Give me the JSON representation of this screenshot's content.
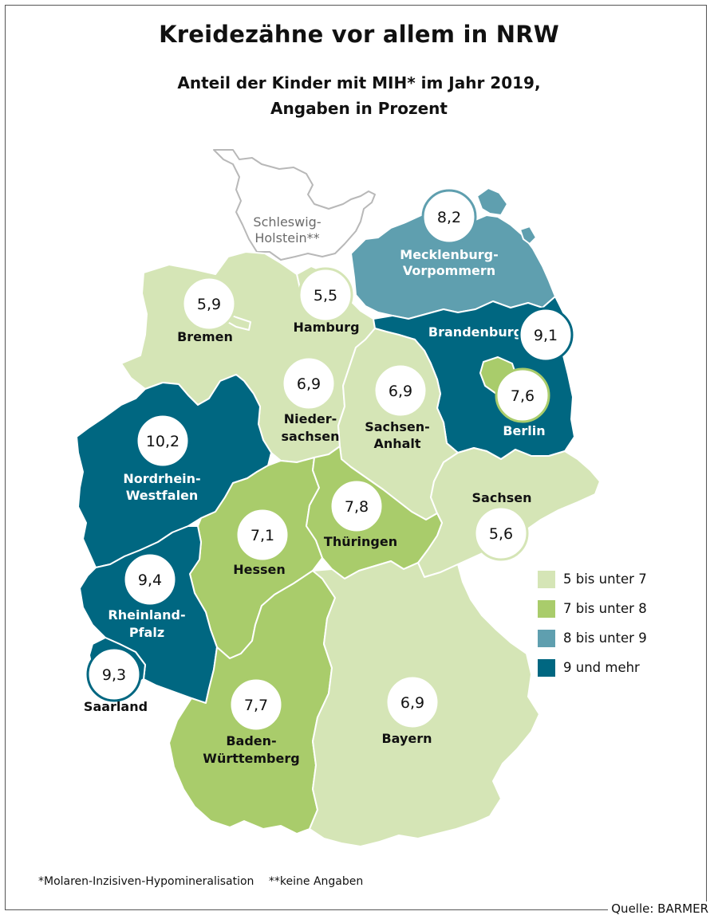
{
  "title": "Kreidezähne vor allem in NRW",
  "subtitle_line1": "Anteil der Kinder mit MIH* im Jahr 2019,",
  "subtitle_line2": "Angaben in Prozent",
  "colors": {
    "class1": "#d5e5b6",
    "class2": "#a9cc6b",
    "class3": "#5f9faf",
    "class4": "#006781",
    "nodata_fill": "#ffffff",
    "nodata_stroke": "#b8b8b8",
    "border": "#ffffff"
  },
  "legend": [
    {
      "label": "5 bis unter 7",
      "color": "#d5e5b6"
    },
    {
      "label": "7 bis unter 8",
      "color": "#a9cc6b"
    },
    {
      "label": "8 bis unter 9",
      "color": "#5f9faf"
    },
    {
      "label": "9 und mehr",
      "color": "#006781"
    }
  ],
  "regions": {
    "sh": {
      "name": "Schleswig-Holstein**",
      "name_l1": "Schleswig-",
      "name_l2": "Holstein**",
      "value": null
    },
    "mv": {
      "name_l1": "Mecklenburg-",
      "name_l2": "Vorpommern",
      "value": "8,2",
      "num": 8.2
    },
    "hh": {
      "name": "Hamburg",
      "value": "5,5",
      "num": 5.5
    },
    "hb": {
      "name": "Bremen",
      "value": "5,9",
      "num": 5.9
    },
    "ni": {
      "name_l1": "Nieder-",
      "name_l2": "sachsen",
      "value": "6,9",
      "num": 6.9
    },
    "bb": {
      "name": "Brandenburg",
      "value": "9,1",
      "num": 9.1
    },
    "be": {
      "name": "Berlin",
      "value": "7,6",
      "num": 7.6
    },
    "st": {
      "name_l1": "Sachsen-",
      "name_l2": "Anhalt",
      "value": "6,9",
      "num": 6.9
    },
    "sn": {
      "name": "Sachsen",
      "value": "5,6",
      "num": 5.6
    },
    "nw": {
      "name_l1": "Nordrhein-",
      "name_l2": "Westfalen",
      "value": "10,2",
      "num": 10.2
    },
    "he": {
      "name": "Hessen",
      "value": "7,1",
      "num": 7.1
    },
    "th": {
      "name": "Thüringen",
      "value": "7,8",
      "num": 7.8
    },
    "rp": {
      "name_l1": "Rheinland-",
      "name_l2": "Pfalz",
      "value": "9,4",
      "num": 9.4
    },
    "sl": {
      "name": "Saarland",
      "value": "9,3",
      "num": 9.3
    },
    "bw": {
      "name_l1": "Baden-",
      "name_l2": "Württemberg",
      "value": "7,7",
      "num": 7.7
    },
    "by": {
      "name": "Bayern",
      "value": "6,9",
      "num": 6.9
    }
  },
  "footnote_1": "*Molaren-Inzisiven-Hypomineralisation",
  "footnote_2": "**keine Angaben",
  "source": "Quelle: BARMER"
}
